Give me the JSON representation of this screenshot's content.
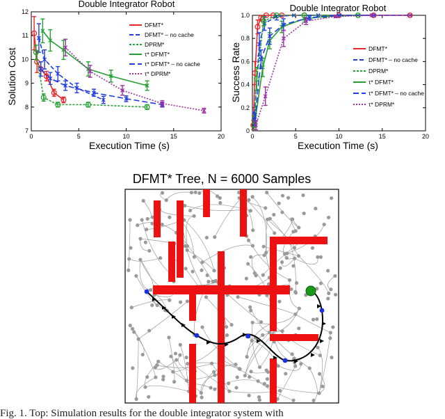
{
  "figure_caption": "Fig. 1.   Top: Simulation results for the double integrator system with",
  "chart_data": [
    {
      "type": "line",
      "title": "Double Integrator Robot",
      "xlabel": "Execution Time (s)",
      "ylabel": "Solution Cost",
      "xlim": [
        0,
        20
      ],
      "ylim": [
        7,
        12
      ],
      "xticks": [
        "0",
        "5",
        "10",
        "15",
        "20"
      ],
      "yticks": [
        "7",
        "8",
        "9",
        "10",
        "11",
        "12"
      ],
      "grid": false,
      "legend_position": "top-right",
      "series": [
        {
          "name": "DFMT*",
          "color": "#e8262a",
          "marker": "o",
          "dash": "",
          "x": [
            0.3,
            0.6,
            1.0,
            1.6,
            2.4,
            3.4
          ],
          "y": [
            11.1,
            9.9,
            9.6,
            9.3,
            8.6,
            8.3
          ],
          "err": [
            0.7,
            0.45,
            0.3,
            0.2,
            0.15,
            0.12
          ]
        },
        {
          "name": "DFMT* – no cache",
          "color": "#1f3ce0",
          "marker": "x",
          "dash": "6,3",
          "x": [
            0.8,
            1.4,
            2.8,
            4.8,
            7.6
          ],
          "y": [
            10.9,
            10.0,
            9.4,
            8.8,
            8.3
          ],
          "err": [
            0.6,
            0.4,
            0.3,
            0.2,
            0.15
          ]
        },
        {
          "name": "DPRM*",
          "color": "#22a030",
          "marker": "o",
          "dash": "3,2",
          "x": [
            0.5,
            1.3,
            2.8,
            6.0,
            12.2
          ],
          "y": [
            10.3,
            8.4,
            8.1,
            8.1,
            8.0
          ],
          "err": [
            0.3,
            0.15,
            0.1,
            0.1,
            0.1
          ]
        },
        {
          "name": "τ* DFMT*",
          "color": "#22a030",
          "marker": "x",
          "dash": "",
          "x": [
            1.2,
            2.0,
            3.4,
            6.0,
            8.4,
            12.2
          ],
          "y": [
            11.2,
            10.8,
            10.4,
            9.6,
            9.3,
            8.9
          ],
          "err": [
            0.5,
            0.45,
            0.4,
            0.3,
            0.25,
            0.2
          ]
        },
        {
          "name": "τ* DFMT* – no cache",
          "color": "#1f3ce0",
          "marker": "x",
          "dash": "8,4",
          "x": [
            1.0,
            2.0,
            3.6,
            6.6,
            10.0,
            13.8
          ],
          "y": [
            9.6,
            9.2,
            8.9,
            8.6,
            8.35,
            8.1
          ],
          "err": [
            0.3,
            0.25,
            0.2,
            0.15,
            0.12,
            0.1
          ]
        },
        {
          "name": "τ* DPRM*",
          "color": "#9b2fa3",
          "marker": "x",
          "dash": "2,2",
          "x": [
            3.6,
            6.2,
            9.6,
            13.8,
            18.2
          ],
          "y": [
            10.5,
            9.5,
            8.7,
            8.15,
            7.85
          ],
          "err": [
            0.35,
            0.25,
            0.2,
            0.12,
            0.1
          ]
        }
      ]
    },
    {
      "type": "line",
      "title": "Double Integrator Robot",
      "xlabel": "Execution Time (s)",
      "ylabel": "Success Rate",
      "xlim": [
        0,
        20
      ],
      "ylim": [
        0,
        1
      ],
      "xticks": [
        "0",
        "5",
        "10",
        "15",
        "20"
      ],
      "yticks": [
        "0",
        "0.2",
        "0.4",
        "0.6",
        "0.8",
        "1.0"
      ],
      "grid": false,
      "legend_position": "right",
      "series": [
        {
          "name": "DFMT*",
          "color": "#e8262a",
          "marker": "o",
          "dash": "",
          "x": [
            0.1,
            0.3,
            0.6,
            1.0,
            1.6,
            2.4,
            3.4,
            6,
            10,
            14,
            18.2
          ],
          "y": [
            0.05,
            0.5,
            0.9,
            0.98,
            1,
            1,
            1,
            1,
            1,
            1,
            1
          ],
          "err": [
            0.04,
            0.1,
            0.06,
            0.03,
            0,
            0,
            0,
            0,
            0,
            0,
            0
          ]
        },
        {
          "name": "DFMT* – no cache",
          "color": "#1f3ce0",
          "marker": "x",
          "dash": "6,3",
          "x": [
            0.2,
            0.8,
            1.4,
            2.8,
            4.8,
            7.6,
            10,
            14,
            18.2
          ],
          "y": [
            0.1,
            0.75,
            0.93,
            0.99,
            1,
            1,
            1,
            1,
            1
          ],
          "err": [
            0.06,
            0.1,
            0.06,
            0.03,
            0,
            0,
            0,
            0,
            0
          ]
        },
        {
          "name": "DPRM*",
          "color": "#22a030",
          "marker": "o",
          "dash": "3,2",
          "x": [
            0.2,
            0.5,
            1.3,
            2.8,
            6.0,
            12.2
          ],
          "y": [
            0.05,
            0.45,
            0.95,
            1,
            1,
            1
          ],
          "err": [
            0.04,
            0.1,
            0.04,
            0,
            0,
            0
          ]
        },
        {
          "name": "τ* DFMT*",
          "color": "#22a030",
          "marker": "x",
          "dash": "",
          "x": [
            0.3,
            1.2,
            2.0,
            3.4,
            6.0,
            8.4,
            12.2
          ],
          "y": [
            0.08,
            0.55,
            0.78,
            0.9,
            0.97,
            0.99,
            1
          ],
          "err": [
            0.05,
            0.08,
            0.07,
            0.05,
            0.03,
            0.01,
            0
          ]
        },
        {
          "name": "τ* DFMT* – no cache",
          "color": "#1f3ce0",
          "marker": "x",
          "dash": "8,4",
          "x": [
            0.3,
            1.0,
            2.0,
            3.6,
            6.6,
            10.0,
            13.8
          ],
          "y": [
            0.1,
            0.62,
            0.82,
            0.92,
            0.98,
            1,
            1
          ],
          "err": [
            0.05,
            0.08,
            0.07,
            0.05,
            0.02,
            0,
            0
          ]
        },
        {
          "name": "τ* DPRM*",
          "color": "#9b2fa3",
          "marker": "x",
          "dash": "2,2",
          "x": [
            0.4,
            1.5,
            3.6,
            6.2,
            9.6,
            13.8,
            18.2
          ],
          "y": [
            0.05,
            0.3,
            0.8,
            0.95,
            0.99,
            1,
            1
          ],
          "err": [
            0.04,
            0.08,
            0.07,
            0.03,
            0.01,
            0,
            0
          ]
        }
      ]
    }
  ],
  "tree_panel": {
    "title": "DFMT* Tree, N = 6000 Samples",
    "sample_count": 6000,
    "obstacle_color": "#ee1111",
    "tree_color": "#9a9a9a",
    "path_color": "#000000",
    "goal_color": "#1a9a1a",
    "waypoint_color": "#1a2fe0"
  }
}
